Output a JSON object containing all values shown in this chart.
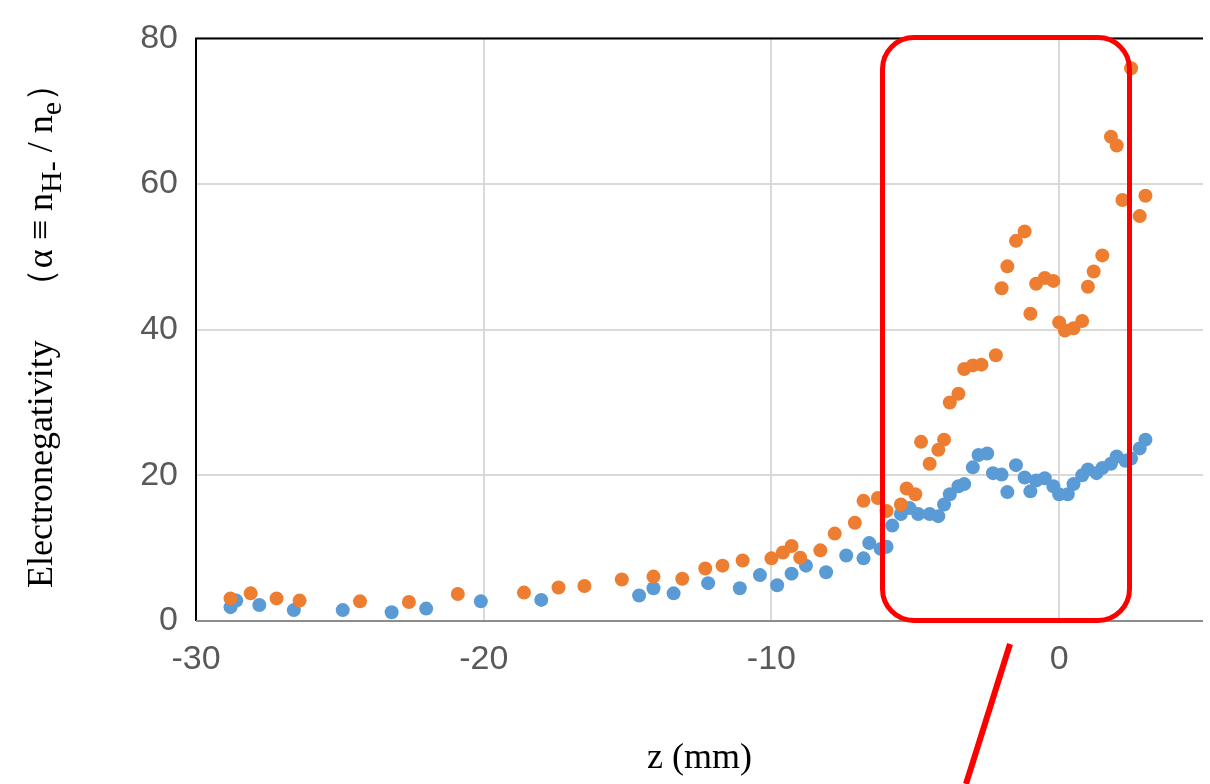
{
  "chart_data": {
    "type": "scatter",
    "xlabel": "z (mm)",
    "ylabel": "Electronegativity　（α ≡ n$_{H-}$ / n$_{e}$）",
    "xlim": [
      -30,
      5
    ],
    "ylim": [
      0,
      80
    ],
    "xticks": [
      -30,
      -20,
      -10,
      0
    ],
    "yticks": [
      0,
      20,
      40,
      60,
      80
    ],
    "grid": true,
    "marker": "circle",
    "legend": false,
    "series": [
      {
        "color": "#ed7d31",
        "x": [
          -28.8,
          -28.1,
          -27.2,
          -26.4,
          -24.3,
          -22.6,
          -20.9,
          -18.6,
          -17.4,
          -16.5,
          -15.2,
          -14.1,
          -13.1,
          -12.3,
          -11.7,
          -11.0,
          -10.0,
          -9.6,
          -9.3,
          -9.0,
          -8.3,
          -7.8,
          -7.1,
          -6.8,
          -6.3,
          -6.0,
          -5.5,
          -5.3,
          -5.0,
          -4.8,
          -4.5,
          -4.2,
          -4.0,
          -3.8,
          -3.5,
          -3.3,
          -3.0,
          -2.7,
          -2.2,
          -2.0,
          -1.8,
          -1.5,
          -1.2,
          -1.0,
          -0.8,
          -0.5,
          -0.2,
          0,
          0.2,
          0.5,
          0.8,
          1.0,
          1.2,
          1.5,
          1.8,
          2.0,
          2.2,
          2.5,
          2.8,
          3.0
        ],
        "values": [
          3.1,
          3.8,
          3.1,
          2.8,
          2.7,
          2.6,
          3.7,
          3.9,
          4.6,
          4.8,
          5.7,
          6.1,
          5.8,
          7.2,
          7.6,
          8.3,
          8.6,
          9.4,
          10.3,
          8.7,
          9.7,
          12,
          13.5,
          16.5,
          16.9,
          15.1,
          16,
          18.2,
          17.4,
          24.6,
          21.6,
          23.5,
          24.9,
          30,
          31.2,
          34.6,
          35.1,
          35.2,
          36.5,
          45.7,
          48.7,
          52.2,
          53.5,
          42.2,
          46.3,
          47.1,
          46.7,
          41.0,
          39.9,
          40.2,
          41.2,
          45.9,
          48.0,
          50.2,
          66.5,
          65.3,
          57.8,
          75.9,
          55.6,
          58.4
        ]
      },
      {
        "color": "#5b9bd5",
        "x": [
          -28.8,
          -28.6,
          -27.8,
          -26.6,
          -24.9,
          -23.2,
          -22.0,
          -20.1,
          -18.0,
          -14.6,
          -14.1,
          -13.4,
          -12.2,
          -11.1,
          -10.4,
          -9.8,
          -9.3,
          -8.8,
          -8.1,
          -7.4,
          -6.8,
          -6.6,
          -6.2,
          -6.0,
          -5.8,
          -5.5,
          -5.2,
          -4.9,
          -4.5,
          -4.2,
          -4.0,
          -3.8,
          -3.5,
          -3.3,
          -3.0,
          -2.8,
          -2.5,
          -2.3,
          -2.0,
          -1.8,
          -1.5,
          -1.2,
          -1.0,
          -0.8,
          -0.5,
          -0.2,
          0,
          0.3,
          0.5,
          0.8,
          1.0,
          1.3,
          1.5,
          1.8,
          2.0,
          2.3,
          2.5,
          2.8,
          3.0
        ],
        "values": [
          1.9,
          2.8,
          2.2,
          1.5,
          1.5,
          1.2,
          1.7,
          2.7,
          2.9,
          3.5,
          4.5,
          3.8,
          5.2,
          4.5,
          6.3,
          4.9,
          6.5,
          7.6,
          6.7,
          9.0,
          8.6,
          10.7,
          9.9,
          10.2,
          13.1,
          14.7,
          15.5,
          14.7,
          14.7,
          14.4,
          16,
          17.4,
          18.5,
          18.8,
          21.1,
          22.8,
          23.0,
          20.3,
          20.1,
          17.7,
          21.4,
          19.7,
          17.8,
          19.3,
          19.6,
          18.5,
          17.4,
          17.4,
          18.8,
          20.0,
          20.8,
          20.3,
          21.0,
          21.6,
          22.6,
          22.0,
          22.3,
          23.7,
          24.9
        ]
      }
    ]
  }
}
